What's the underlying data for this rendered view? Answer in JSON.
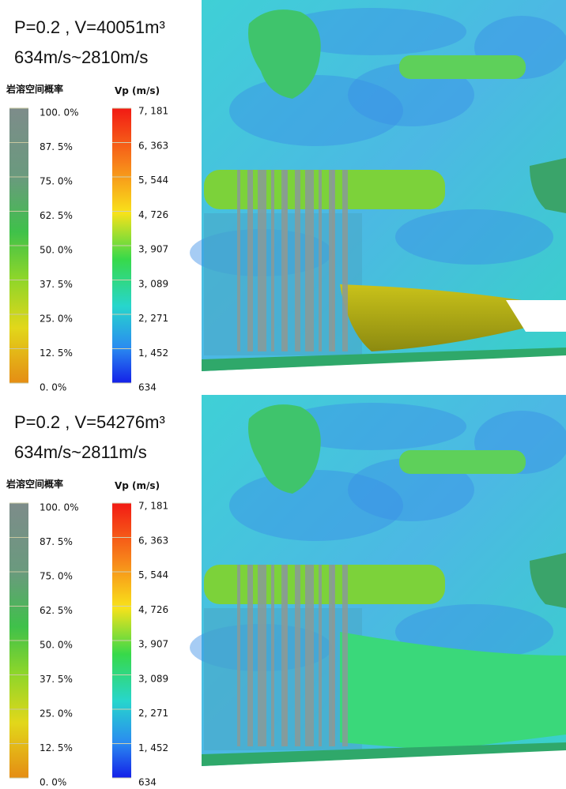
{
  "panels": [
    {
      "title": "P=0.2 , V=40051m³",
      "range": "634m/s~2810m/s",
      "legend_probability": {
        "title": "岩溶空间概率",
        "labels": [
          "100. 0%",
          "87. 5%",
          "75. 0%",
          "62. 5%",
          "50. 0%",
          "37. 5%",
          "25. 0%",
          "12. 5%",
          "0. 0%"
        ]
      },
      "legend_velocity": {
        "title": "Vp (m/s)",
        "labels": [
          "7, 181",
          "6, 363",
          "5, 544",
          "4, 726",
          "3, 907",
          "3, 089",
          "2, 271",
          "1, 452",
          "634"
        ]
      }
    },
    {
      "title": "P=0.2 , V=54276m³",
      "range": "634m/s~2811m/s",
      "legend_probability": {
        "title": "岩溶空间概率",
        "labels": [
          "100. 0%",
          "87. 5%",
          "75. 0%",
          "62. 5%",
          "50. 0%",
          "37. 5%",
          "25. 0%",
          "12. 5%",
          "0. 0%"
        ]
      },
      "legend_velocity": {
        "title": "Vp (m/s)",
        "labels": [
          "7, 181",
          "6, 363",
          "5, 544",
          "4, 726",
          "3, 907",
          "3, 089",
          "2, 271",
          "1, 452",
          "634"
        ]
      }
    }
  ]
}
